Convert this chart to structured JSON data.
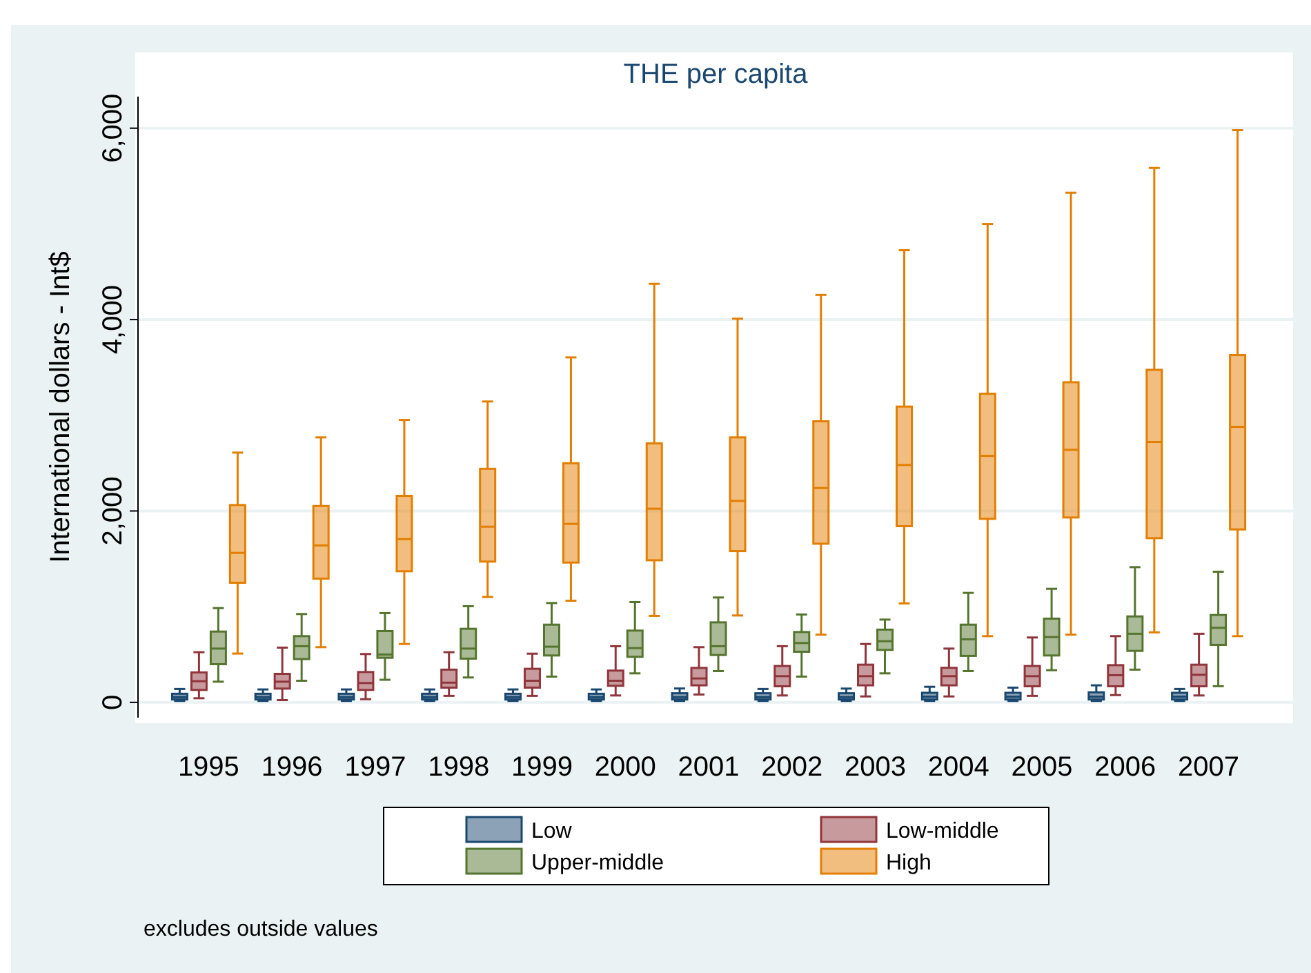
{
  "chart_data": {
    "type": "box",
    "title": "THE per capita",
    "ylabel": "International dollars - Int$",
    "categories": [
      "1995",
      "1996",
      "1997",
      "1998",
      "1999",
      "2000",
      "2001",
      "2002",
      "2003",
      "2004",
      "2005",
      "2006",
      "2007"
    ],
    "ylim": [
      -160,
      6330
    ],
    "yticks": [
      {
        "value": 0,
        "label": "0"
      },
      {
        "value": 2000,
        "label": "2,000"
      },
      {
        "value": 4000,
        "label": "4,000"
      },
      {
        "value": 6000,
        "label": "6,000"
      }
    ],
    "grid": "y",
    "legend": "bottom",
    "annotations": [
      "excludes outside values"
    ],
    "series": [
      {
        "name": "Low",
        "color": "#1a476f",
        "boxes": [
          {
            "low": 15,
            "q1": 30,
            "median": 55,
            "q3": 90,
            "high": 140
          },
          {
            "low": 15,
            "q1": 30,
            "median": 55,
            "q3": 90,
            "high": 135
          },
          {
            "low": 15,
            "q1": 30,
            "median": 55,
            "q3": 90,
            "high": 135
          },
          {
            "low": 15,
            "q1": 30,
            "median": 55,
            "q3": 90,
            "high": 135
          },
          {
            "low": 15,
            "q1": 30,
            "median": 55,
            "q3": 90,
            "high": 135
          },
          {
            "low": 15,
            "q1": 30,
            "median": 55,
            "q3": 90,
            "high": 135
          },
          {
            "low": 15,
            "q1": 30,
            "median": 55,
            "q3": 95,
            "high": 145
          },
          {
            "low": 15,
            "q1": 30,
            "median": 55,
            "q3": 95,
            "high": 140
          },
          {
            "low": 15,
            "q1": 30,
            "median": 55,
            "q3": 95,
            "high": 144
          },
          {
            "low": 15,
            "q1": 30,
            "median": 60,
            "q3": 100,
            "high": 163
          },
          {
            "low": 15,
            "q1": 30,
            "median": 60,
            "q3": 100,
            "high": 154
          },
          {
            "low": 15,
            "q1": 30,
            "median": 60,
            "q3": 105,
            "high": 178
          },
          {
            "low": 15,
            "q1": 30,
            "median": 60,
            "q3": 100,
            "high": 140
          }
        ]
      },
      {
        "name": "Low-middle",
        "color": "#90353b",
        "boxes": [
          {
            "low": 43,
            "q1": 130,
            "median": 221,
            "q3": 313,
            "high": 524
          },
          {
            "low": 24,
            "q1": 144,
            "median": 216,
            "q3": 298,
            "high": 572
          },
          {
            "low": 33,
            "q1": 130,
            "median": 202,
            "q3": 317,
            "high": 505
          },
          {
            "low": 68,
            "q1": 154,
            "median": 206,
            "q3": 342,
            "high": 524
          },
          {
            "low": 68,
            "q1": 154,
            "median": 226,
            "q3": 351,
            "high": 509
          },
          {
            "low": 72,
            "q1": 173,
            "median": 226,
            "q3": 332,
            "high": 587
          },
          {
            "low": 82,
            "q1": 178,
            "median": 250,
            "q3": 360,
            "high": 577
          },
          {
            "low": 72,
            "q1": 168,
            "median": 274,
            "q3": 380,
            "high": 587
          },
          {
            "low": 62,
            "q1": 178,
            "median": 274,
            "q3": 394,
            "high": 610
          },
          {
            "low": 62,
            "q1": 178,
            "median": 274,
            "q3": 361,
            "high": 562
          },
          {
            "low": 68,
            "q1": 168,
            "median": 274,
            "q3": 380,
            "high": 678
          },
          {
            "low": 76,
            "q1": 168,
            "median": 284,
            "q3": 389,
            "high": 692
          },
          {
            "low": 72,
            "q1": 168,
            "median": 288,
            "q3": 394,
            "high": 717
          }
        ]
      },
      {
        "name": "Upper-middle",
        "color": "#55752f",
        "boxes": [
          {
            "low": 216,
            "q1": 399,
            "median": 562,
            "q3": 740,
            "high": 985
          },
          {
            "low": 226,
            "q1": 452,
            "median": 587,
            "q3": 692,
            "high": 923
          },
          {
            "low": 236,
            "q1": 466,
            "median": 500,
            "q3": 745,
            "high": 933
          },
          {
            "low": 260,
            "q1": 457,
            "median": 562,
            "q3": 769,
            "high": 1005
          },
          {
            "low": 269,
            "q1": 490,
            "median": 582,
            "q3": 812,
            "high": 1038
          },
          {
            "low": 303,
            "q1": 476,
            "median": 567,
            "q3": 750,
            "high": 1048
          },
          {
            "low": 327,
            "q1": 495,
            "median": 587,
            "q3": 836,
            "high": 1096
          },
          {
            "low": 269,
            "q1": 529,
            "median": 620,
            "q3": 735,
            "high": 918
          },
          {
            "low": 303,
            "q1": 548,
            "median": 639,
            "q3": 760,
            "high": 865
          },
          {
            "low": 327,
            "q1": 486,
            "median": 659,
            "q3": 812,
            "high": 1144
          },
          {
            "low": 336,
            "q1": 490,
            "median": 682,
            "q3": 875,
            "high": 1187
          },
          {
            "low": 342,
            "q1": 538,
            "median": 717,
            "q3": 898,
            "high": 1413
          },
          {
            "low": 169,
            "q1": 601,
            "median": 779,
            "q3": 913,
            "high": 1365
          }
        ]
      },
      {
        "name": "High",
        "color": "#e37e00",
        "boxes": [
          {
            "low": 510,
            "q1": 1250,
            "median": 1562,
            "q3": 2062,
            "high": 2610
          },
          {
            "low": 577,
            "q1": 1293,
            "median": 1640,
            "q3": 2052,
            "high": 2769
          },
          {
            "low": 610,
            "q1": 1370,
            "median": 1706,
            "q3": 2158,
            "high": 2951
          },
          {
            "low": 1101,
            "q1": 1471,
            "median": 1836,
            "q3": 2441,
            "high": 3144
          },
          {
            "low": 1062,
            "q1": 1461,
            "median": 1865,
            "q3": 2499,
            "high": 3605
          },
          {
            "low": 904,
            "q1": 1485,
            "median": 2024,
            "q3": 2706,
            "high": 4374
          },
          {
            "low": 908,
            "q1": 1581,
            "median": 2105,
            "q3": 2769,
            "high": 4009
          },
          {
            "low": 707,
            "q1": 1658,
            "median": 2240,
            "q3": 2937,
            "high": 4258
          },
          {
            "low": 1034,
            "q1": 1841,
            "median": 2480,
            "q3": 3091,
            "high": 4725
          },
          {
            "low": 692,
            "q1": 1918,
            "median": 2576,
            "q3": 3225,
            "high": 4999
          },
          {
            "low": 707,
            "q1": 1932,
            "median": 2639,
            "q3": 3345,
            "high": 5326
          },
          {
            "low": 731,
            "q1": 1716,
            "median": 2721,
            "q3": 3475,
            "high": 5585
          },
          {
            "low": 692,
            "q1": 1807,
            "median": 2879,
            "q3": 3629,
            "high": 5980
          }
        ]
      }
    ]
  }
}
